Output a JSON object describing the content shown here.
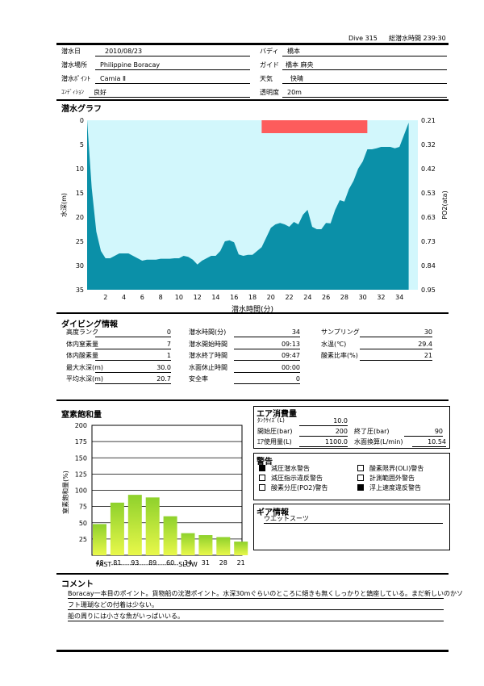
{
  "header": {
    "dive_label": "Dive 315",
    "total_label": "総潜水時間 239:30"
  },
  "info": {
    "date_label": "潜水日",
    "date": "2010/08/23",
    "place_label": "潜水場所",
    "place": "Philippine Boracay",
    "point_label": "潜水ﾎﾟｲﾝﾄ",
    "point": "Camia Ⅱ",
    "condition_label": "ｺﾝﾃﾞｨｼｮﾝ",
    "condition": "良好",
    "buddy_label": "バディ",
    "buddy": "橋本",
    "guide_label": "ガイド",
    "guide": "橋本 麻央",
    "weather_label": "天気",
    "weather": "快晴",
    "visibility_label": "透明度",
    "visibility": "20m"
  },
  "graph": {
    "title": "潜水グラフ",
    "ylabel_left": "水深(m)",
    "ylabel_right": "PO2(ata)",
    "xlabel": "潜水時間(分)",
    "left_ticks": [
      "0",
      "5",
      "10",
      "15",
      "20",
      "25",
      "30",
      "35"
    ],
    "right_ticks": [
      "0.21",
      "0.32",
      "0.42",
      "0.53",
      "0.63",
      "0.73",
      "0.84",
      "0.95"
    ],
    "x_ticks": [
      "2",
      "4",
      "6",
      "8",
      "10",
      "12",
      "14",
      "16",
      "18",
      "20",
      "22",
      "24",
      "26",
      "28",
      "30",
      "32",
      "34"
    ],
    "colors": {
      "water": "#d2f7fc",
      "profile": "#0b90a8",
      "alarm": "#fd5c5c"
    }
  },
  "chart_data": [
    {
      "type": "area",
      "xlabel": "潜水時間(分)",
      "ylabel": "水深(m)",
      "xlim": [
        0,
        36
      ],
      "ylim": [
        35,
        0
      ],
      "x": [
        0,
        0.5,
        1,
        1.5,
        2,
        2.5,
        3,
        3.5,
        4,
        4.5,
        5,
        5.5,
        6,
        6.5,
        7,
        7.5,
        8,
        8.5,
        9,
        9.5,
        10,
        10.5,
        11,
        11.5,
        12,
        12.5,
        13,
        13.5,
        14,
        14.5,
        15,
        15.5,
        16,
        16.5,
        17,
        17.5,
        18,
        18.5,
        19,
        19.5,
        20,
        20.5,
        21,
        21.5,
        22,
        22.5,
        23,
        23.5,
        24,
        24.5,
        25,
        25.5,
        26,
        26.5,
        27,
        27.5,
        28,
        28.5,
        29,
        29.5,
        30,
        30.5,
        31,
        31.5,
        32,
        32.5,
        33,
        33.5,
        34,
        34.5,
        35
      ],
      "y": [
        0,
        14,
        23,
        27,
        28.5,
        28.5,
        28,
        27.5,
        27.5,
        27.5,
        28,
        28.5,
        29,
        28.8,
        28.8,
        28.8,
        28.6,
        28.6,
        28.6,
        28.5,
        28.5,
        28,
        28.2,
        28.8,
        29.8,
        29,
        28.5,
        28,
        28,
        27,
        25,
        24.8,
        25.2,
        27.7,
        28,
        27.8,
        27.8,
        27,
        26.2,
        24.2,
        22.2,
        21.5,
        21.2,
        21.5,
        22,
        21,
        21.5,
        19.5,
        18.5,
        22,
        22.5,
        22.5,
        21.2,
        21.3,
        18.5,
        16.5,
        16.8,
        14.2,
        12.5,
        10,
        8.5,
        6,
        6,
        5.8,
        5.5,
        5.5,
        5.5,
        5.8,
        5.5,
        3,
        0.5
      ],
      "alarm_span": [
        19,
        30.5
      ]
    },
    {
      "type": "bar",
      "title": "窒素飽和量",
      "ylabel": "窒素飽和量(%)",
      "categories": [
        "48",
        "81",
        "93",
        "89",
        "60",
        "34",
        "31",
        "28",
        "21"
      ],
      "values": [
        48,
        81,
        93,
        89,
        60,
        34,
        31,
        28,
        21
      ],
      "ylim": [
        0,
        200
      ],
      "yticks": [
        "200",
        "175",
        "150",
        "125",
        "100",
        "75",
        "50",
        "25"
      ],
      "x_caption": "FAST-----------------------------SLOW"
    }
  ],
  "diving": {
    "title": "ダイビング情報",
    "left": [
      {
        "label": "高度ランク",
        "value": "0"
      },
      {
        "label": "体内窒素量",
        "value": "7"
      },
      {
        "label": "体内酸素量",
        "value": "1"
      },
      {
        "label": "最大水深(m)",
        "value": "30.0"
      },
      {
        "label": "平均水深(m)",
        "value": "20.7"
      }
    ],
    "mid": [
      {
        "label": "潜水時間(分)",
        "value": "34"
      },
      {
        "label": "潜水開始時間",
        "value": "09:13"
      },
      {
        "label": "潜水終了時間",
        "value": "09:47"
      },
      {
        "label": "水面休止時間",
        "value": "00:00"
      },
      {
        "label": "安全率",
        "value": "0"
      }
    ],
    "right": [
      {
        "label": "サンプリング",
        "value": "30"
      },
      {
        "label": "水温(℃)",
        "value": "29.4"
      },
      {
        "label": "酸素比率(%)",
        "value": "21"
      }
    ]
  },
  "air": {
    "title": "エア消費量",
    "tank_label": "ﾀﾝｸｻｲｽﾞ(L)",
    "tank": "10.0",
    "start_label": "開始圧(bar)",
    "start": "200",
    "end_label": "終了圧(bar)",
    "end": "90",
    "used_label": "ｴｱ使用量(L)",
    "used": "1100.0",
    "surface_label": "水面換算(L/min)",
    "surface": "10.54"
  },
  "warnings": {
    "title": "警告",
    "items": [
      {
        "label": "減圧潜水警告",
        "checked": true
      },
      {
        "label": "酸素限界(OLI)警告",
        "checked": false
      },
      {
        "label": "減圧指示違反警告",
        "checked": false
      },
      {
        "label": "計測範囲外警告",
        "checked": false
      },
      {
        "label": "酸素分圧(PO2)警告",
        "checked": false
      },
      {
        "label": "浮上速度違反警告",
        "checked": true
      }
    ]
  },
  "gear": {
    "title": "ギア情報",
    "text": "ウエットスーツ"
  },
  "comment": {
    "title": "コメント",
    "lines": [
      "Boracay一本目のポイント。貨物船の沈潜ポイント。水深30mぐらいのところに傾きも無くしっかりと鎮座している。まだ新しいのかソ",
      "フト珊瑚などの付着は少ない。",
      "船の周りには小さな魚がいっぱいいる。"
    ]
  }
}
